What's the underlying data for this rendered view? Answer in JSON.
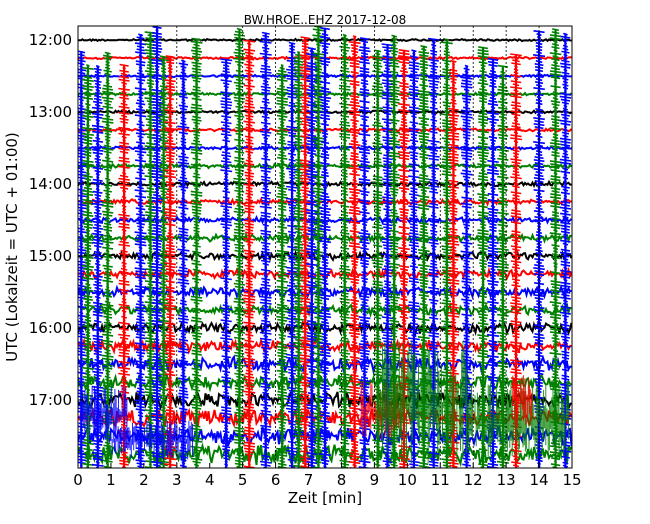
{
  "chart_data": {
    "type": "line",
    "title": "BW.HROE..EHZ 2017-12-08",
    "xlabel": "Zeit  [min]",
    "ylabel": "UTC (Lokalzeit = UTC + 01:00)",
    "xlim": [
      0,
      15
    ],
    "x_ticks": [
      0,
      1,
      2,
      3,
      4,
      5,
      6,
      7,
      8,
      9,
      10,
      11,
      12,
      13,
      14,
      15
    ],
    "y_time_range": [
      "12:00",
      "17:45"
    ],
    "y_ticks": [
      "12:00",
      "13:00",
      "14:00",
      "15:00",
      "16:00",
      "17:00"
    ],
    "trace_interval_minutes": 15,
    "trace_color_cycle": [
      "#000000",
      "#ff0000",
      "#0000ff",
      "#008000"
    ],
    "traces": [
      {
        "start": "12:00"
      },
      {
        "start": "12:15"
      },
      {
        "start": "12:30"
      },
      {
        "start": "12:45"
      },
      {
        "start": "13:00"
      },
      {
        "start": "13:15"
      },
      {
        "start": "13:30"
      },
      {
        "start": "13:45"
      },
      {
        "start": "14:00"
      },
      {
        "start": "14:15"
      },
      {
        "start": "14:30"
      },
      {
        "start": "14:45"
      },
      {
        "start": "15:00"
      },
      {
        "start": "15:15"
      },
      {
        "start": "15:30"
      },
      {
        "start": "15:45"
      },
      {
        "start": "16:00"
      },
      {
        "start": "16:15"
      },
      {
        "start": "16:30"
      },
      {
        "start": "16:45"
      },
      {
        "start": "17:00"
      },
      {
        "start": "17:15"
      },
      {
        "start": "17:30"
      },
      {
        "start": "17:45"
      }
    ],
    "event_times_min": [
      0.1,
      0.3,
      0.6,
      0.9,
      1.4,
      1.9,
      2.2,
      2.4,
      2.6,
      2.8,
      3.2,
      3.6,
      4.5,
      4.9,
      5.2,
      5.7,
      6.2,
      6.5,
      6.7,
      6.9,
      7.1,
      7.3,
      7.5,
      8.1,
      8.4,
      8.7,
      9.1,
      9.4,
      9.6,
      9.9,
      10.2,
      10.5,
      10.8,
      11.2,
      11.4,
      11.8,
      12.3,
      12.6,
      12.9,
      13.3,
      14.0,
      14.5,
      14.8
    ],
    "gridline_times_min": [
      3,
      5,
      6,
      8,
      9,
      11,
      12,
      13,
      14
    ],
    "grid": true
  }
}
